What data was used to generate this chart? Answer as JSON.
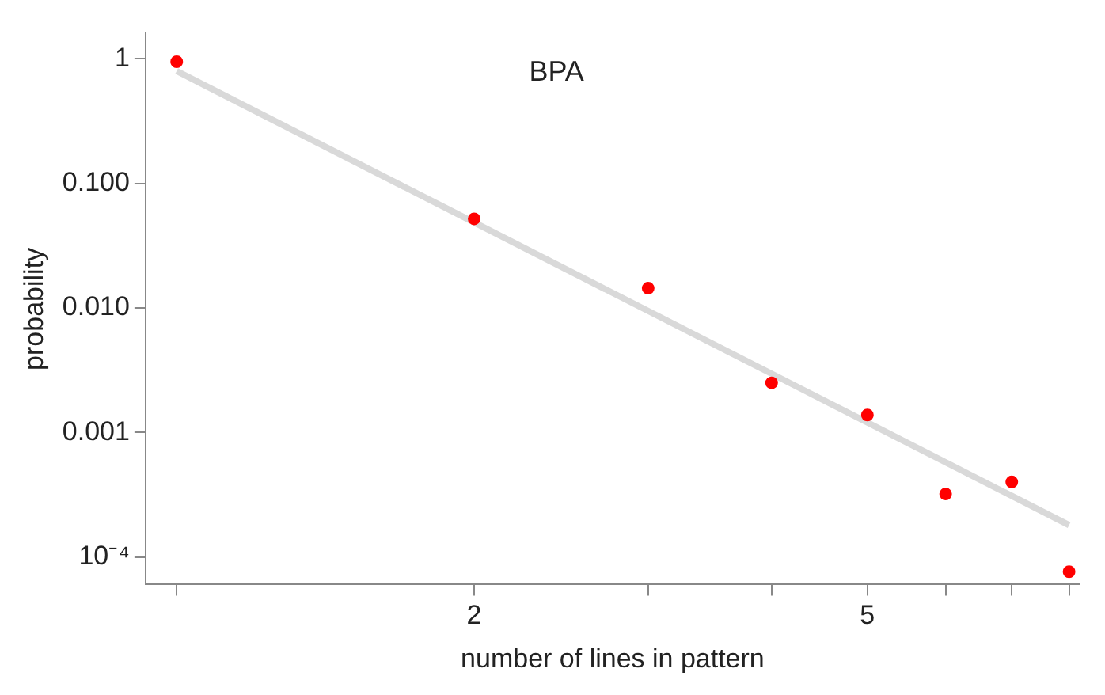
{
  "chart_data": {
    "type": "scatter",
    "xlabel": "number of lines in pattern",
    "ylabel": "probability",
    "annotations": [
      "BPA"
    ],
    "log": "xy",
    "xlim": [
      0.93,
      8.2
    ],
    "ylim": [
      6e-05,
      1.6
    ],
    "xticks": [
      {
        "value": 1,
        "label": null
      },
      2,
      {
        "value": 3,
        "label": null
      },
      {
        "value": 4,
        "label": null
      },
      5,
      {
        "value": 6,
        "label": null
      },
      {
        "value": 7,
        "label": null
      },
      {
        "value": 8,
        "label": null
      }
    ],
    "yticks": [
      {
        "value": 0.0001,
        "label": "10⁻⁴"
      },
      {
        "value": 0.001,
        "label": "0.001"
      },
      {
        "value": 0.01,
        "label": "0.010"
      },
      {
        "value": 0.1,
        "label": "0.100"
      },
      1
    ],
    "series": [
      {
        "type": "line",
        "x": [
          1,
          8
        ],
        "values": [
          0.8,
          0.00018
        ],
        "color": "#d9d9d9",
        "marker": "none",
        "line_style": "solid"
      },
      {
        "x": [
          1,
          2,
          3,
          4,
          5,
          6,
          7,
          8
        ],
        "values": [
          0.95,
          0.052,
          0.0144,
          0.0025,
          0.00138,
          0.00032,
          0.0004,
          7.6e-05
        ],
        "color": "#ff0000",
        "marker": "circle"
      }
    ]
  }
}
